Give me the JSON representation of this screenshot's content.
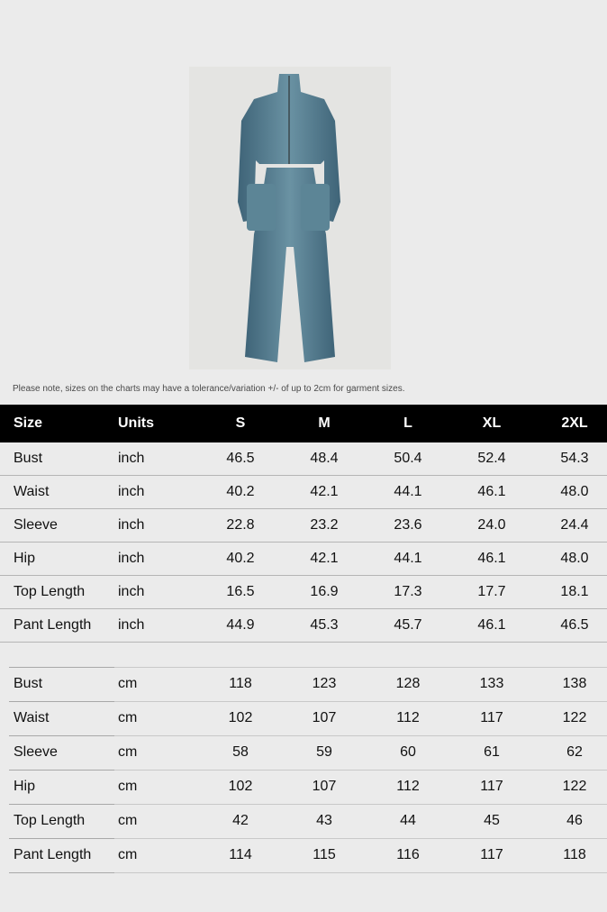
{
  "note": "Please note, sizes on the charts may have a tolerance/variation +/- of up to 2cm for garment sizes.",
  "table": {
    "headers": [
      "Size",
      "Units",
      "S",
      "M",
      "L",
      "XL",
      "2XL"
    ],
    "inch_rows": [
      {
        "name": "Bust",
        "unit": "inch",
        "values": [
          "46.5",
          "48.4",
          "50.4",
          "52.4",
          "54.3"
        ]
      },
      {
        "name": "Waist",
        "unit": "inch",
        "values": [
          "40.2",
          "42.1",
          "44.1",
          "46.1",
          "48.0"
        ]
      },
      {
        "name": "Sleeve",
        "unit": "inch",
        "values": [
          "22.8",
          "23.2",
          "23.6",
          "24.0",
          "24.4"
        ]
      },
      {
        "name": "Hip",
        "unit": "inch",
        "values": [
          "40.2",
          "42.1",
          "44.1",
          "46.1",
          "48.0"
        ]
      },
      {
        "name": "Top Length",
        "unit": "inch",
        "values": [
          "16.5",
          "16.9",
          "17.3",
          "17.7",
          "18.1"
        ]
      },
      {
        "name": "Pant Length",
        "unit": "inch",
        "values": [
          "44.9",
          "45.3",
          "45.7",
          "46.1",
          "46.5"
        ]
      }
    ],
    "cm_rows": [
      {
        "name": "Bust",
        "unit": "cm",
        "values": [
          "118",
          "123",
          "128",
          "133",
          "138"
        ]
      },
      {
        "name": "Waist",
        "unit": "cm",
        "values": [
          "102",
          "107",
          "112",
          "117",
          "122"
        ]
      },
      {
        "name": "Sleeve",
        "unit": "cm",
        "values": [
          "58",
          "59",
          "60",
          "61",
          "62"
        ]
      },
      {
        "name": "Hip",
        "unit": "cm",
        "values": [
          "102",
          "107",
          "112",
          "117",
          "122"
        ]
      },
      {
        "name": "Top Length",
        "unit": "cm",
        "values": [
          "42",
          "43",
          "44",
          "45",
          "46"
        ]
      },
      {
        "name": "Pant Length",
        "unit": "cm",
        "values": [
          "114",
          "115",
          "116",
          "117",
          "118"
        ]
      }
    ]
  },
  "colors": {
    "header_bg": "#000000",
    "denim": "#4f7890"
  }
}
